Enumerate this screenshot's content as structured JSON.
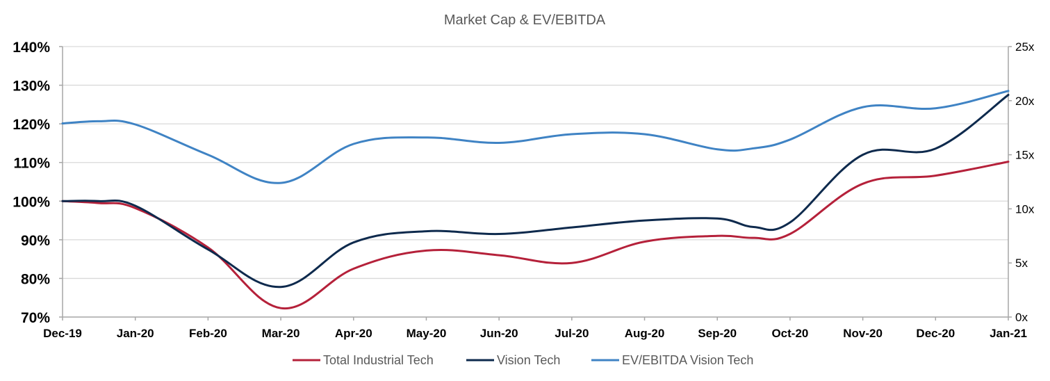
{
  "chart_data": {
    "type": "line",
    "title": "Market Cap & EV/EBITDA",
    "categories": [
      "Dec-19",
      "Jan-20",
      "Feb-20",
      "Mar-20",
      "Apr-20",
      "May-20",
      "Jun-20",
      "Jul-20",
      "Aug-20",
      "Sep-20",
      "Oct-20",
      "Nov-20",
      "Dec-20",
      "Jan-21"
    ],
    "x": [
      0,
      0.5,
      1,
      2,
      3,
      4,
      5,
      6,
      7,
      8,
      9,
      9.5,
      10,
      11,
      12,
      13
    ],
    "y_left": {
      "ticks": [
        "70%",
        "80%",
        "90%",
        "100%",
        "110%",
        "120%",
        "130%",
        "140%"
      ],
      "range": [
        70,
        140
      ]
    },
    "y_right": {
      "ticks": [
        "0x",
        "5x",
        "10x",
        "15x",
        "20x",
        "25x"
      ],
      "range": [
        0,
        25
      ]
    },
    "series": [
      {
        "name": "Total Industrial Tech",
        "axis": "left",
        "color": "#b5213a",
        "values": [
          100,
          99.5,
          98.2,
          88,
          72.3,
          82.5,
          87.2,
          86,
          84,
          89.5,
          91,
          90.5,
          91.5,
          104.5,
          106.6,
          110.2
        ]
      },
      {
        "name": "Vision Tech",
        "axis": "left",
        "color": "#0e2a4d",
        "values": [
          100,
          100,
          98.8,
          87.5,
          77.8,
          89.3,
          92.2,
          91.5,
          93.2,
          95,
          95.5,
          93.3,
          94.5,
          112,
          113.6,
          127.5
        ]
      },
      {
        "name": "EV/EBITDA Vision Tech",
        "axis": "right",
        "color": "#3f83c4",
        "values": [
          17.9,
          18.1,
          17.8,
          15,
          12.4,
          16,
          16.6,
          16.1,
          16.9,
          16.9,
          15.5,
          15.6,
          16.4,
          19.4,
          19.3,
          20.9
        ]
      }
    ],
    "legend": "bottom-center",
    "grid": true
  }
}
